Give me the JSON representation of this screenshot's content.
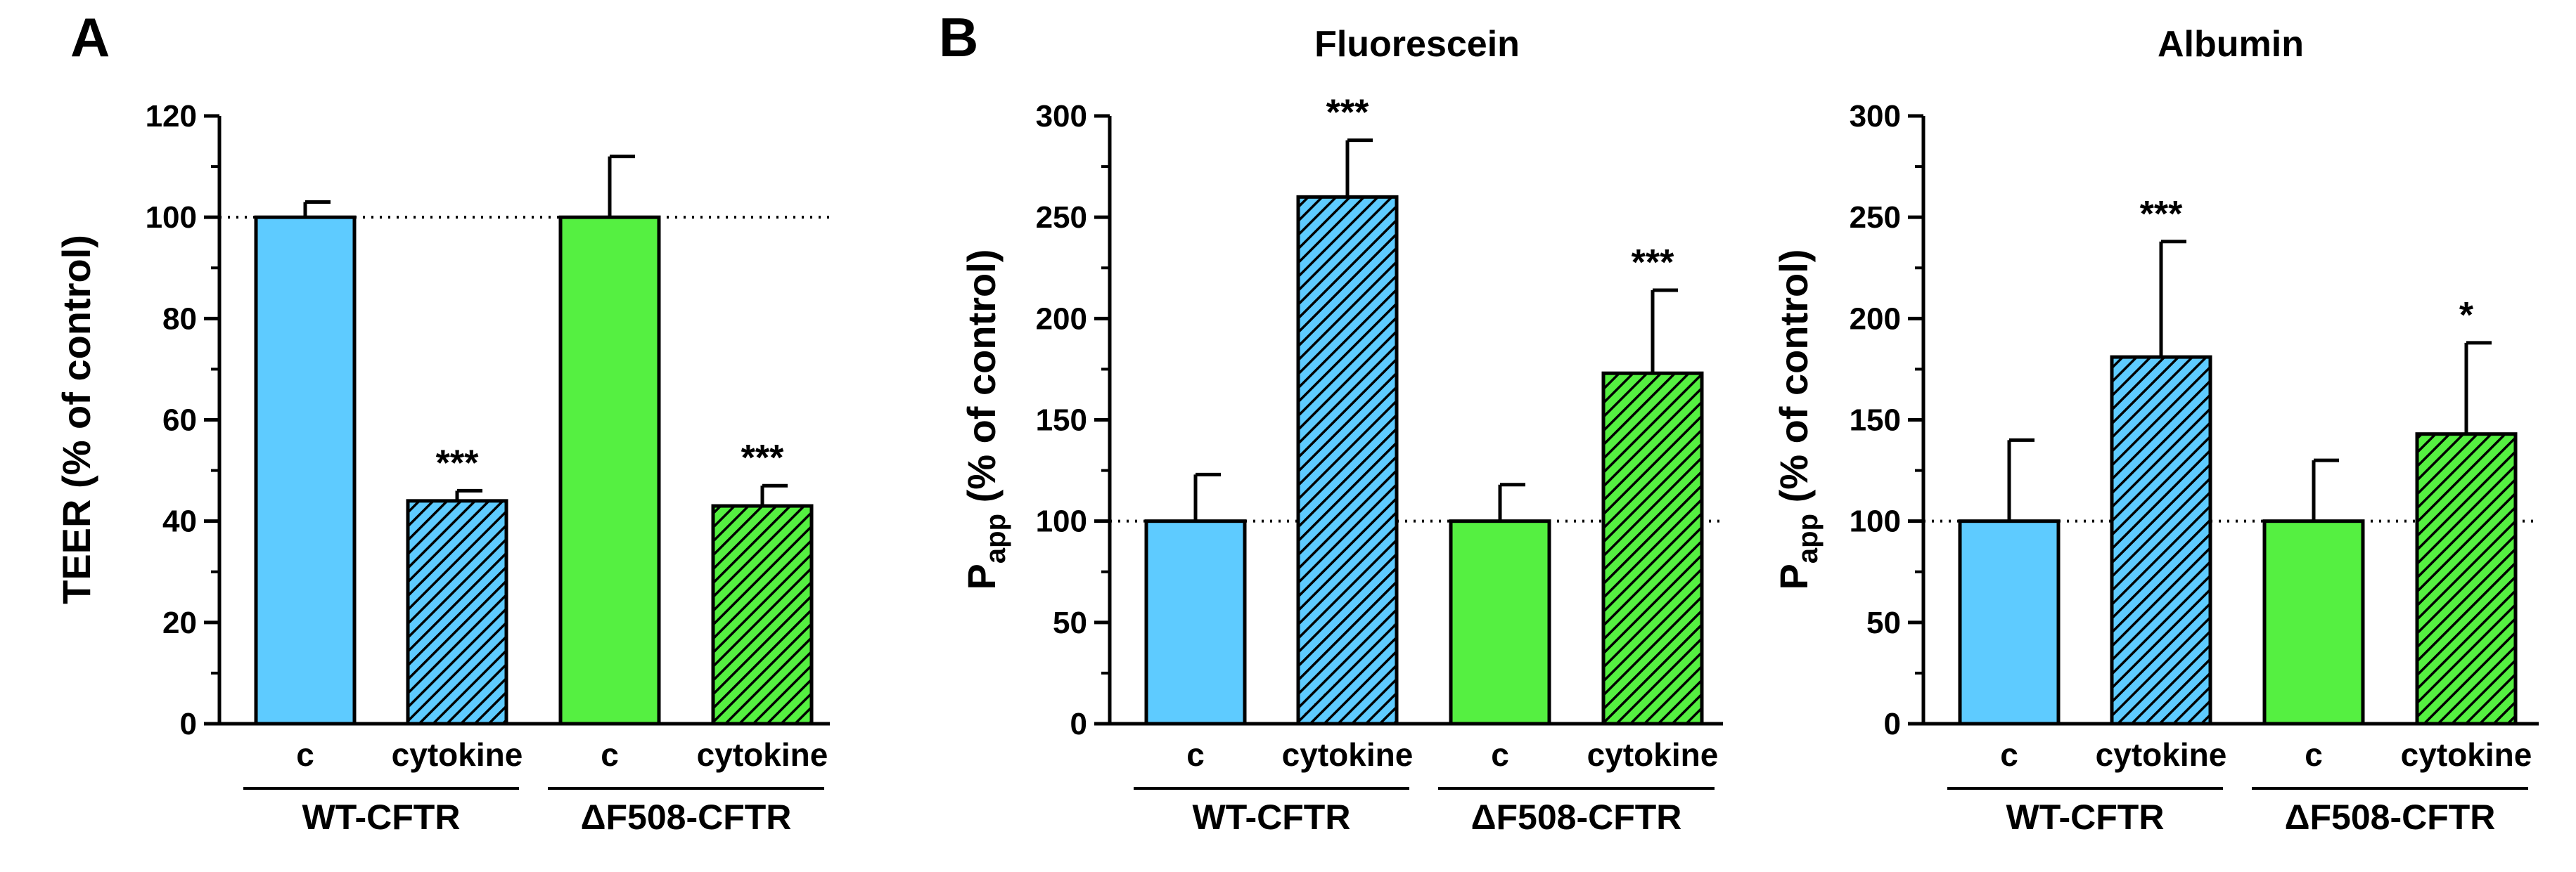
{
  "colors": {
    "wt": "#5ecbff",
    "df508": "#55f041",
    "axis": "#000000"
  },
  "panels": {
    "A": "A",
    "B": "B"
  },
  "chart_data": [
    {
      "type": "bar",
      "panel": "A",
      "title": "",
      "ylabel": "TEER (% of control)",
      "ylabel_main": "TEER",
      "ylabel_sub": "",
      "ylabel_rest": " (% of control)",
      "ylim": [
        0,
        120
      ],
      "yticks": [
        0,
        20,
        40,
        60,
        80,
        100,
        120
      ],
      "minor_step": 10,
      "reference_line": 100,
      "categories": [
        "c",
        "cytokine",
        "c",
        "cytokine"
      ],
      "groups": [
        {
          "label": "WT-CFTR",
          "span": [
            0,
            1
          ]
        },
        {
          "label": "ΔF508-CFTR",
          "span": [
            2,
            3
          ]
        }
      ],
      "values": [
        100,
        44,
        100,
        43
      ],
      "errors": [
        3,
        2,
        12,
        4
      ],
      "bar_colors": [
        "wt",
        "wt",
        "df508",
        "df508"
      ],
      "hatched": [
        false,
        true,
        false,
        true
      ],
      "significance": [
        "",
        "***",
        "",
        "***"
      ]
    },
    {
      "type": "bar",
      "panel": "B",
      "title": "Fluorescein",
      "ylabel": "Papp (% of control)",
      "ylabel_main": "P",
      "ylabel_sub": "app",
      "ylabel_rest": " (% of control)",
      "ylim": [
        0,
        300
      ],
      "yticks": [
        0,
        50,
        100,
        150,
        200,
        250,
        300
      ],
      "minor_step": 25,
      "reference_line": 100,
      "categories": [
        "c",
        "cytokine",
        "c",
        "cytokine"
      ],
      "groups": [
        {
          "label": "WT-CFTR",
          "span": [
            0,
            1
          ]
        },
        {
          "label": "ΔF508-CFTR",
          "span": [
            2,
            3
          ]
        }
      ],
      "values": [
        100,
        260,
        100,
        173
      ],
      "errors": [
        23,
        28,
        18,
        41
      ],
      "bar_colors": [
        "wt",
        "wt",
        "df508",
        "df508"
      ],
      "hatched": [
        false,
        true,
        false,
        true
      ],
      "significance": [
        "",
        "***",
        "",
        "***"
      ]
    },
    {
      "type": "bar",
      "panel": "",
      "title": "Albumin",
      "ylabel": "Papp (% of control)",
      "ylabel_main": "P",
      "ylabel_sub": "app",
      "ylabel_rest": " (% of control)",
      "ylim": [
        0,
        300
      ],
      "yticks": [
        0,
        50,
        100,
        150,
        200,
        250,
        300
      ],
      "minor_step": 25,
      "reference_line": 100,
      "categories": [
        "c",
        "cytokine",
        "c",
        "cytokine"
      ],
      "groups": [
        {
          "label": "WT-CFTR",
          "span": [
            0,
            1
          ]
        },
        {
          "label": "ΔF508-CFTR",
          "span": [
            2,
            3
          ]
        }
      ],
      "values": [
        100,
        181,
        100,
        143
      ],
      "errors": [
        40,
        57,
        30,
        45
      ],
      "bar_colors": [
        "wt",
        "wt",
        "df508",
        "df508"
      ],
      "hatched": [
        false,
        true,
        false,
        true
      ],
      "significance": [
        "",
        "***",
        "",
        "*"
      ]
    }
  ]
}
